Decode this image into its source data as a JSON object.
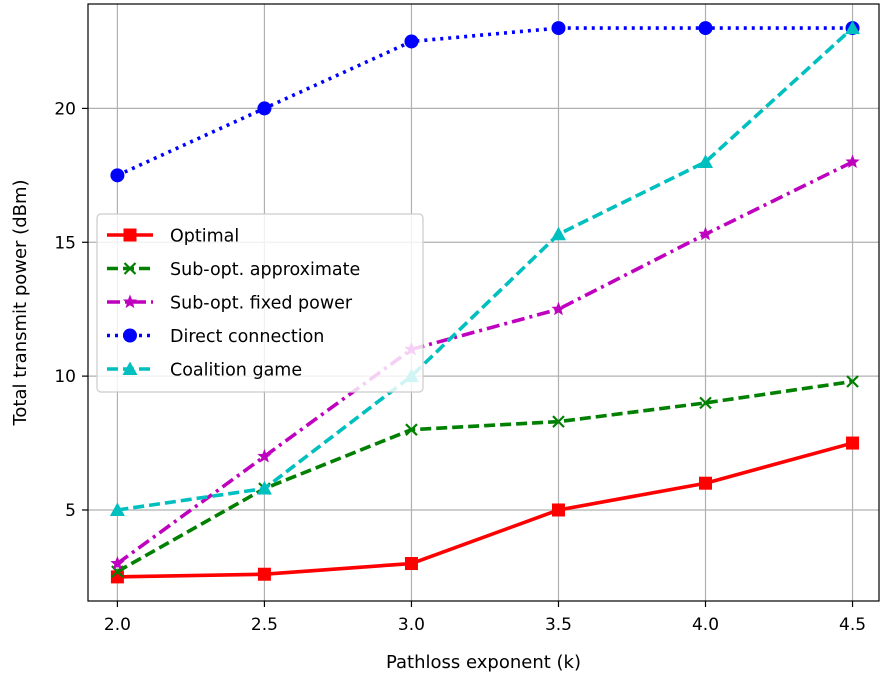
{
  "chart_data": {
    "type": "line",
    "title": "",
    "xlabel": "Pathloss exponent (k)",
    "ylabel": "Total transmit power (dBm)",
    "x": [
      2.0,
      2.5,
      3.0,
      3.5,
      4.0,
      4.5
    ],
    "x_tick_labels": [
      "2.0",
      "2.5",
      "3.0",
      "3.5",
      "4.0",
      "4.5"
    ],
    "y_ticks": [
      5,
      10,
      15,
      20
    ],
    "y_tick_labels": [
      "5",
      "10",
      "15",
      "20"
    ],
    "xlim": [
      1.9,
      4.59
    ],
    "ylim": [
      1.6,
      23.9
    ],
    "grid": true,
    "legend_position": "center-left",
    "series": [
      {
        "name": "Optimal",
        "values": [
          2.5,
          2.6,
          3.0,
          5.0,
          6.0,
          7.5
        ],
        "color": "#ff0000",
        "linestyle": "solid",
        "marker": "square"
      },
      {
        "name": "Sub-opt. approximate",
        "values": [
          2.7,
          5.8,
          8.0,
          8.3,
          9.0,
          9.8
        ],
        "color": "#008000",
        "linestyle": "dashed",
        "marker": "x"
      },
      {
        "name": "Sub-opt. fixed power",
        "values": [
          3.0,
          7.0,
          11.0,
          12.5,
          15.3,
          18.0
        ],
        "color": "#bf00bf",
        "linestyle": "dashdot",
        "marker": "star"
      },
      {
        "name": "Direct connection",
        "values": [
          17.5,
          20.0,
          22.5,
          23.0,
          23.0,
          23.0
        ],
        "color": "#0000ff",
        "linestyle": "dotted",
        "marker": "circle"
      },
      {
        "name": "Coalition game",
        "values": [
          5.0,
          5.8,
          10.0,
          15.3,
          18.0,
          23.0
        ],
        "color": "#00bfbf",
        "linestyle": "dashed",
        "marker": "triangle"
      }
    ]
  }
}
